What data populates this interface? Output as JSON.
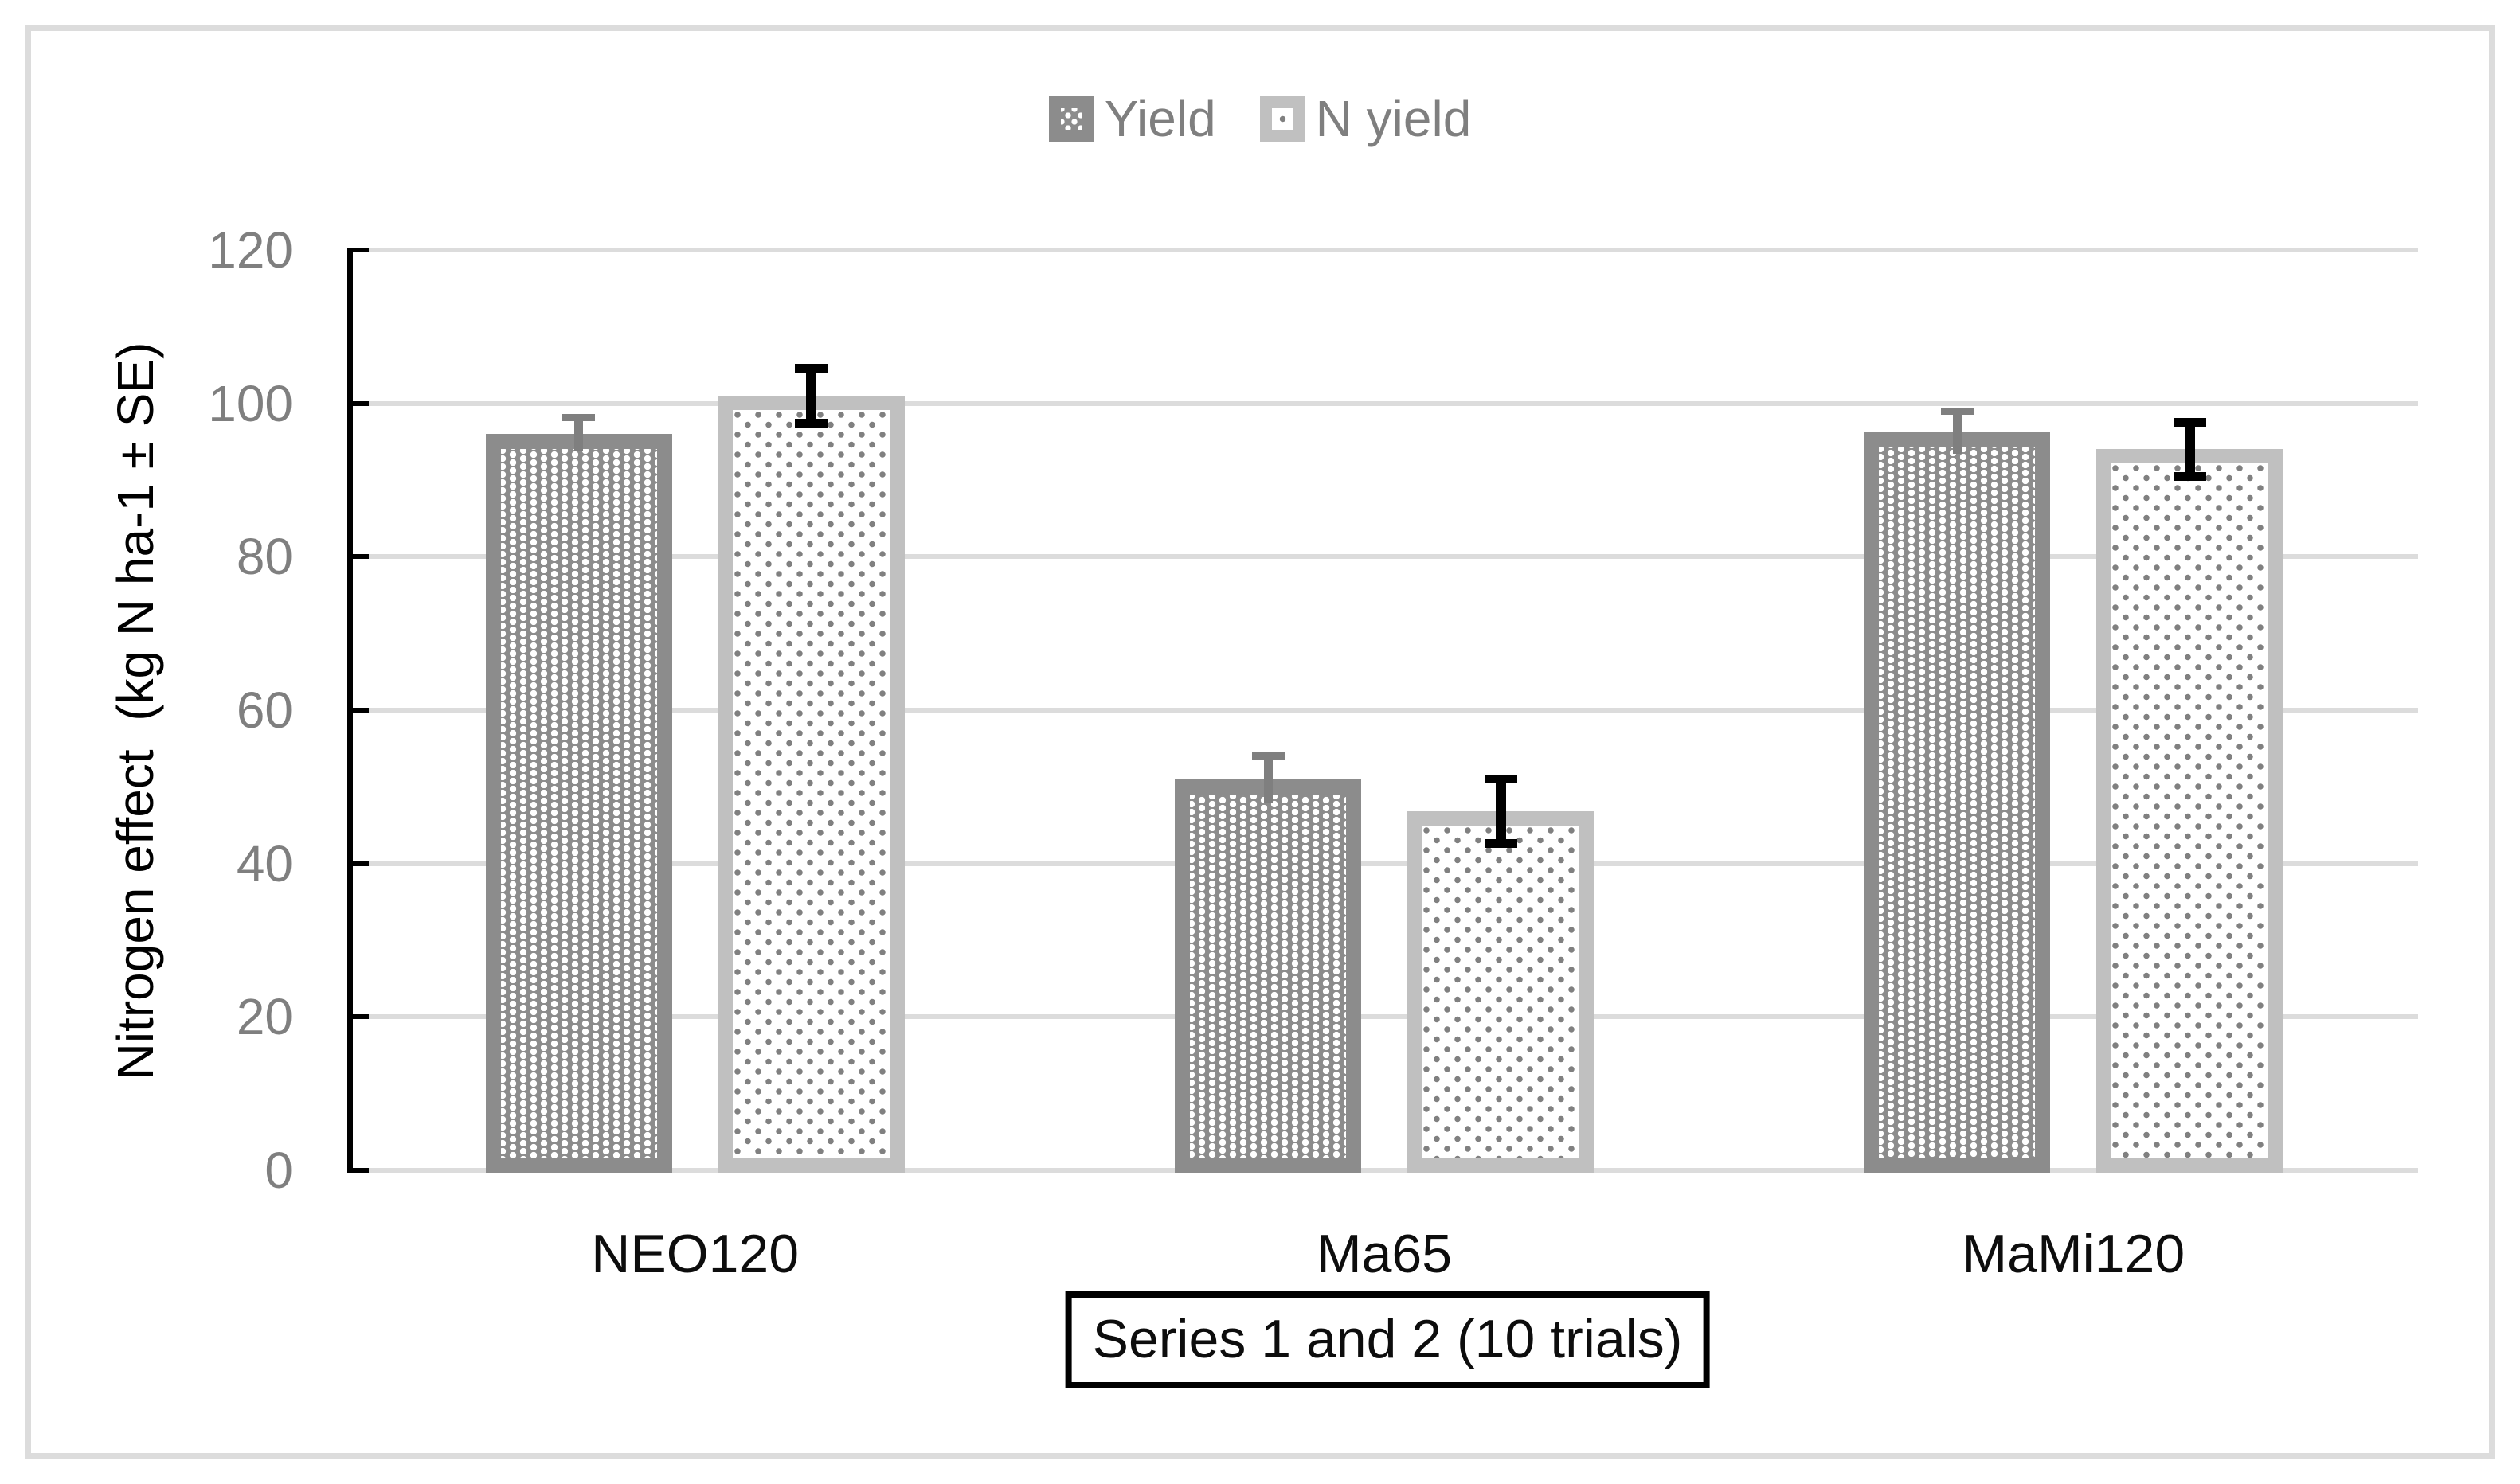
{
  "figure": {
    "background": "#ffffff",
    "outer_border_color": "#dcdcdc"
  },
  "legend": {
    "position": "top-center",
    "text_color": "#7f7f7f",
    "items": [
      {
        "label": "Yield",
        "swatch": "dark-gray-checker-pattern-swatch"
      },
      {
        "label": "N yield",
        "swatch": "light-gray-dotted-pattern-swatch"
      }
    ]
  },
  "chart_data": {
    "type": "bar",
    "categories": [
      "NEO120",
      "Ma65",
      "MaMi120"
    ],
    "series": [
      {
        "name": "Yield",
        "values": [
          96,
          51,
          96.2
        ],
        "errors": [
          2.2,
          3.0,
          2.8
        ],
        "fill": "#8c8c8c",
        "pattern": "white-squares-on-dark-gray",
        "error_color": "#7f7f7f",
        "error_caps": "top"
      },
      {
        "name": "N yield",
        "values": [
          101,
          46.8,
          94
        ],
        "errors": [
          3.6,
          4.2,
          3.5
        ],
        "fill": "#ffffff",
        "border_color": "#c0c0c0",
        "pattern": "gray-squares-on-white",
        "error_color": "#000000",
        "error_caps": "both"
      }
    ],
    "title": "",
    "xlabel": "Series 1 and 2 (10 trials)",
    "ylabel": "Nitrogen effect  (kg N ha-1 ± SE)",
    "ylim": [
      0,
      120
    ],
    "yticks": [
      0,
      20,
      40,
      60,
      80,
      100,
      120
    ],
    "grid": true,
    "gridline_color": "#dcdcdc",
    "axis_line_color": "#000000",
    "tick_label_color": "#7f7f7f",
    "category_label_color": "#0d0d0d",
    "legend_position": "top-center"
  },
  "x_axis_title_box": {
    "label": "Series 1 and 2 (10 trials)",
    "border_color": "#000000",
    "text_color": "#0d0d0d"
  }
}
